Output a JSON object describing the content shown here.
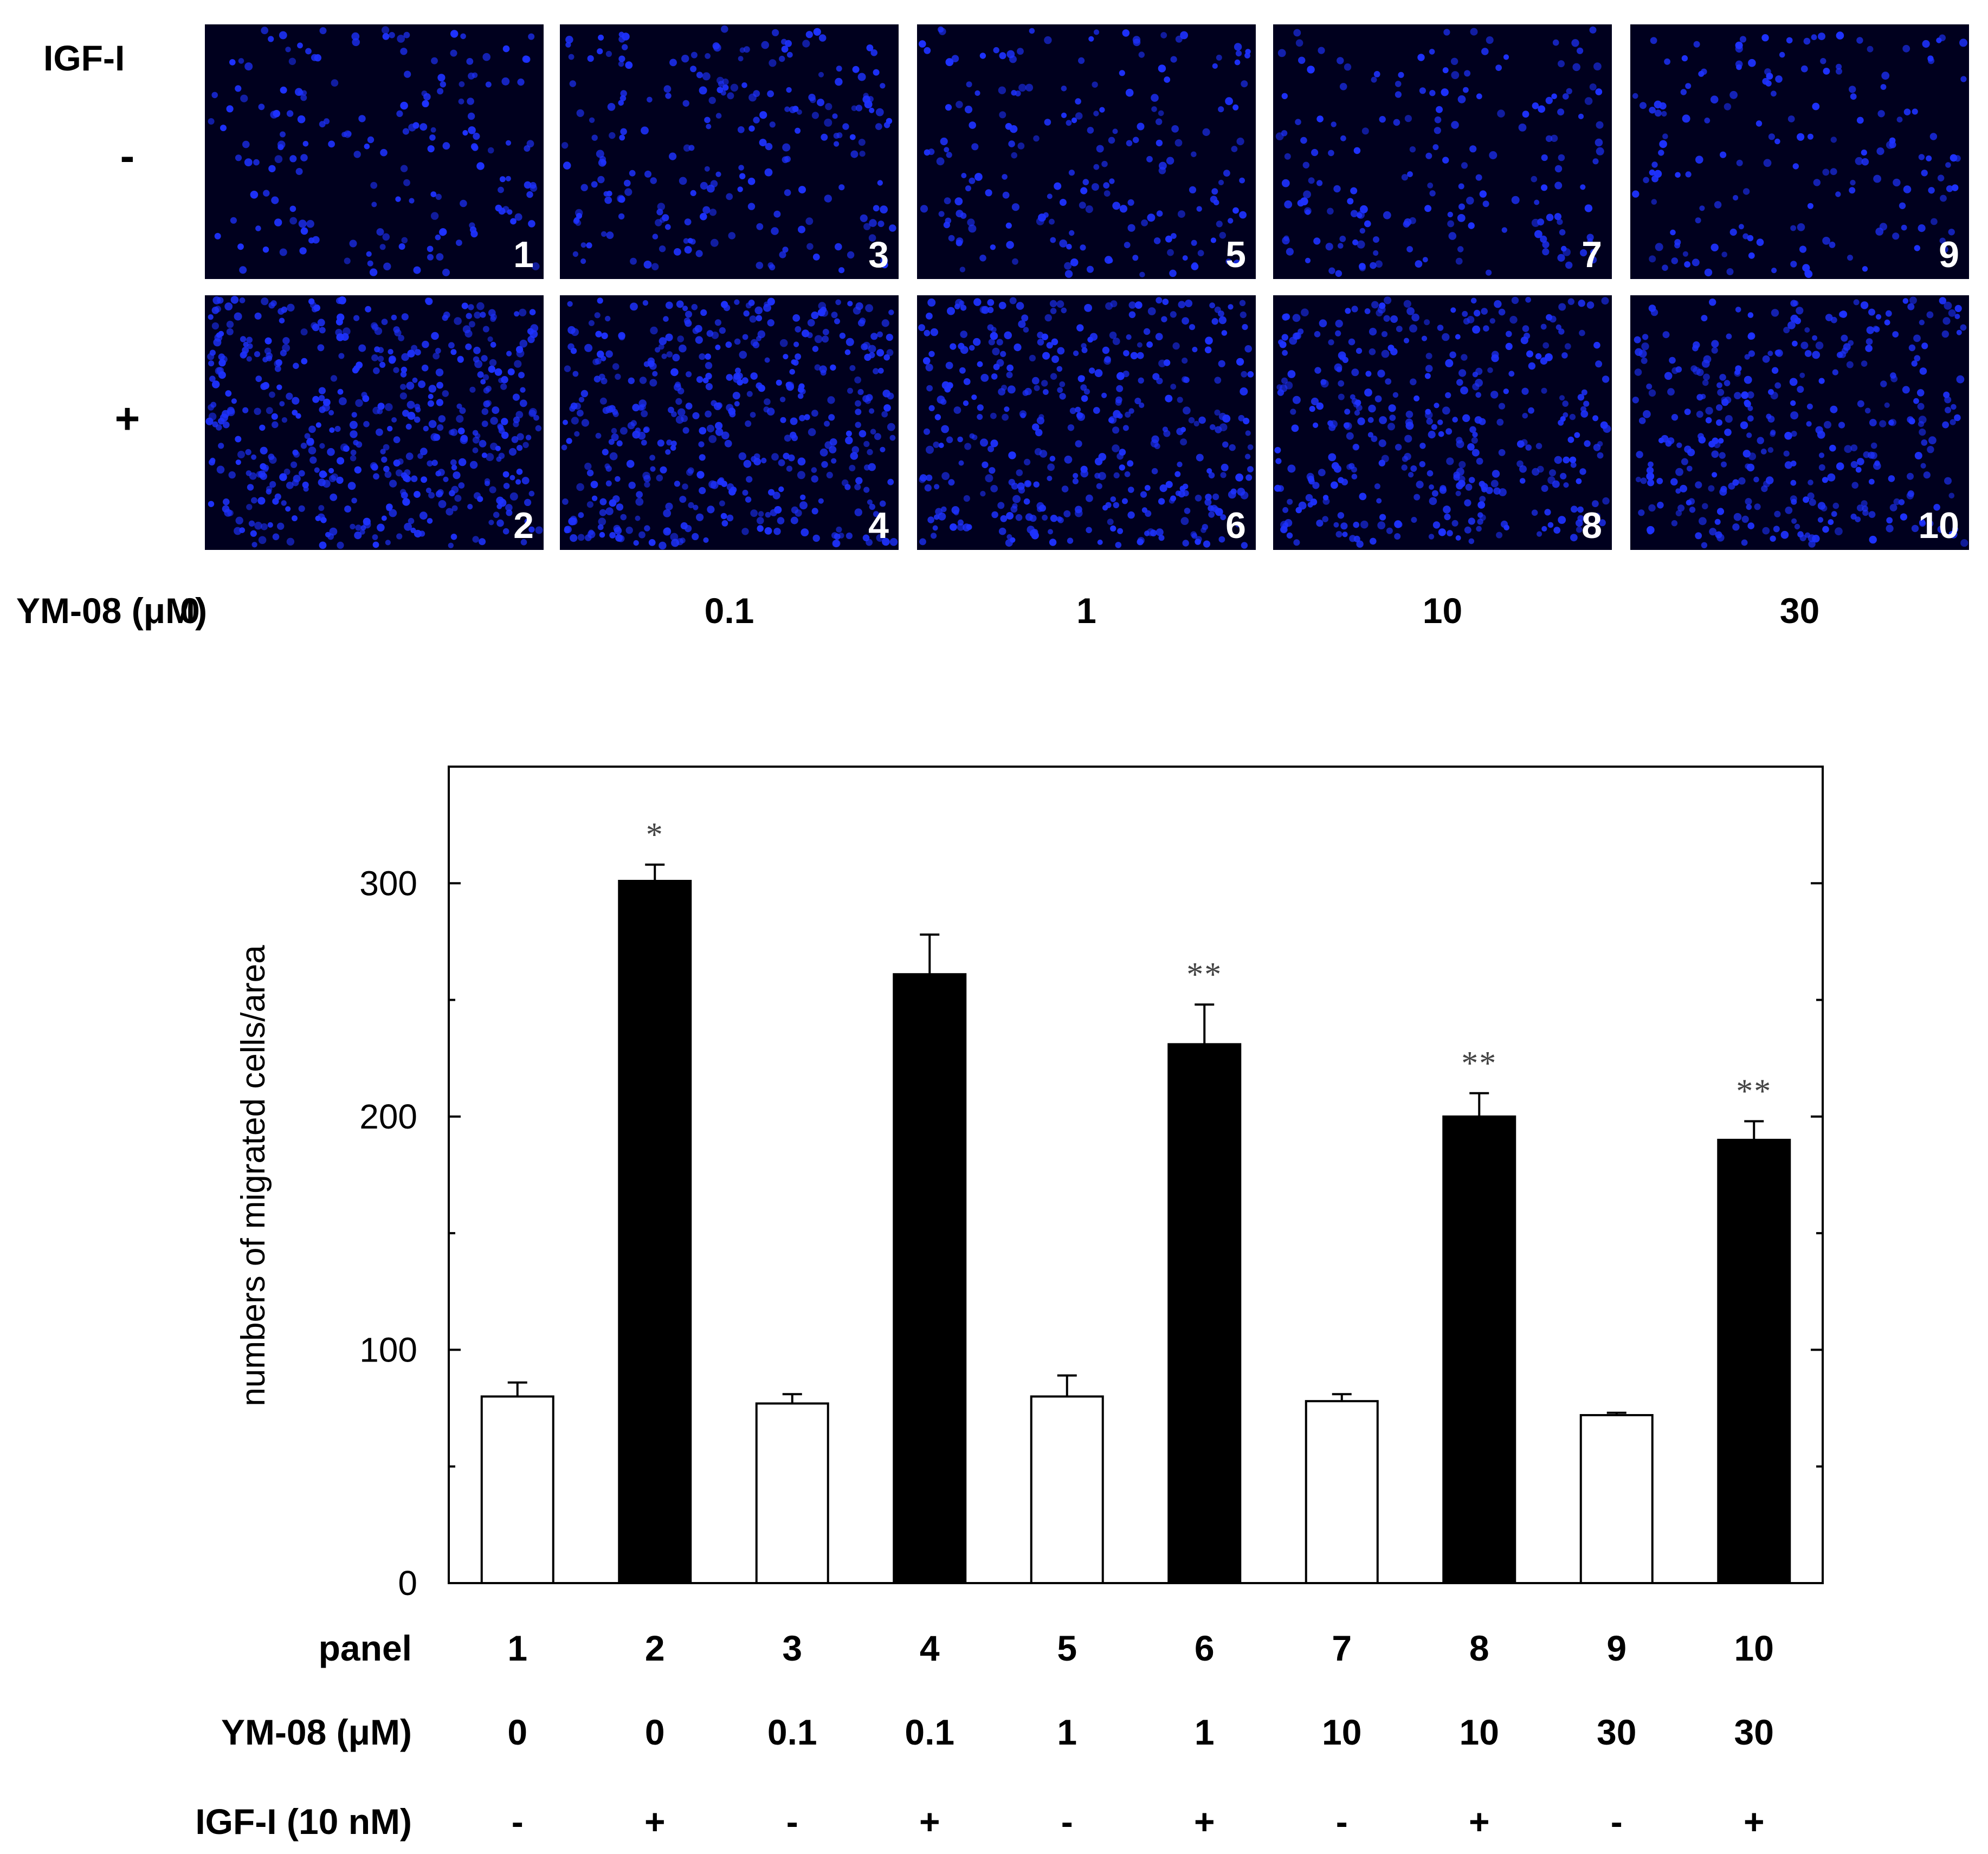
{
  "micrographs": {
    "row_label_title": "IGF-I",
    "row_labels": [
      "-",
      "+"
    ],
    "col_axis_label": "YM-08 (μM)",
    "col_labels": [
      "0",
      "0.1",
      "1",
      "10",
      "30"
    ],
    "panel_numbers": [
      [
        "1",
        "3",
        "5",
        "7",
        "9"
      ],
      [
        "2",
        "4",
        "6",
        "8",
        "10"
      ]
    ],
    "bg_color": "#00001e",
    "cell_color": "#1e32ff",
    "cell_density": [
      [
        0.35,
        0.45,
        0.38,
        0.36,
        0.33
      ],
      [
        1.0,
        0.9,
        0.8,
        0.75,
        0.7
      ]
    ]
  },
  "chart_data": {
    "type": "bar",
    "title": "",
    "xlabel": "",
    "ylabel": "numbers of migrated cells/area",
    "ylim": [
      0,
      350
    ],
    "yticks": [
      0,
      100,
      200,
      300
    ],
    "categories": [
      "1",
      "2",
      "3",
      "4",
      "5",
      "6",
      "7",
      "8",
      "9",
      "10"
    ],
    "values": [
      80,
      301,
      77,
      261,
      80,
      231,
      78,
      200,
      72,
      190
    ],
    "errors": [
      6,
      7,
      4,
      17,
      9,
      17,
      3,
      10,
      1,
      8
    ],
    "fills": [
      "#ffffff",
      "#000000",
      "#ffffff",
      "#000000",
      "#ffffff",
      "#000000",
      "#ffffff",
      "#000000",
      "#ffffff",
      "#000000"
    ],
    "annotations": [
      "",
      "*",
      "",
      "",
      "",
      "**",
      "",
      "**",
      "",
      "**"
    ],
    "table_rows": [
      {
        "label": "panel",
        "values": [
          "1",
          "2",
          "3",
          "4",
          "5",
          "6",
          "7",
          "8",
          "9",
          "10"
        ]
      },
      {
        "label": "YM-08 (μM)",
        "values": [
          "0",
          "0",
          "0.1",
          "0.1",
          "1",
          "1",
          "10",
          "10",
          "30",
          "30"
        ]
      },
      {
        "label": "IGF-I (10 nM)",
        "values": [
          "-",
          "+",
          "-",
          "+",
          "-",
          "+",
          "-",
          "+",
          "-",
          "+"
        ]
      }
    ],
    "grid": false
  }
}
